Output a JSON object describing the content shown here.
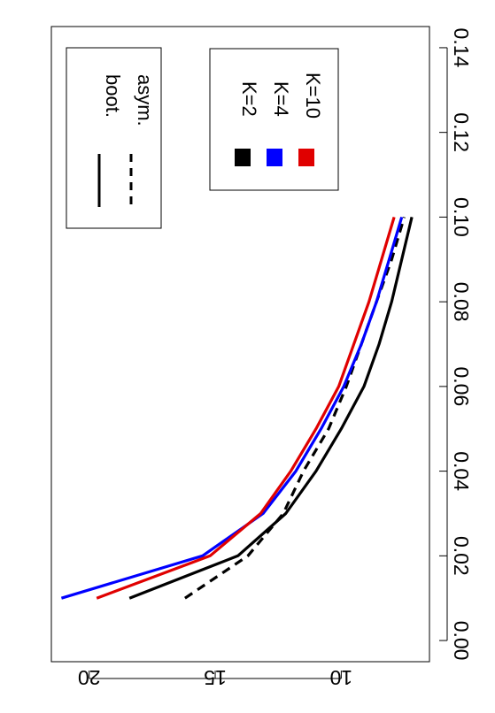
{
  "chart_data": {
    "type": "line",
    "orientation": "rotated-90",
    "xlim": [
      -0.005,
      0.145
    ],
    "ylim": [
      6.5,
      21.5
    ],
    "x_ticks": [
      "0.00",
      "0.02",
      "0.04",
      "0.06",
      "0.08",
      "0.10",
      "0.12",
      "0.14"
    ],
    "y_ticks": [
      "10",
      "15",
      "20"
    ],
    "series": [
      {
        "name": "K=2 boot.",
        "color": "#000000",
        "dash": "solid",
        "x": [
          0.01,
          0.02,
          0.03,
          0.04,
          0.05,
          0.06,
          0.07,
          0.08,
          0.09,
          0.1
        ],
        "y": [
          18.4,
          14.1,
          12.2,
          11.0,
          10.0,
          9.1,
          8.5,
          8.0,
          7.6,
          7.2
        ]
      },
      {
        "name": "K=2 asym.",
        "color": "#000000",
        "dash": "dashed",
        "x": [
          0.01,
          0.02,
          0.03,
          0.04,
          0.05,
          0.06,
          0.07,
          0.08,
          0.09,
          0.1
        ],
        "y": [
          16.2,
          13.7,
          12.3,
          11.5,
          10.5,
          9.8,
          9.2,
          8.6,
          8.0,
          7.5
        ]
      },
      {
        "name": "K=4 boot.",
        "color": "#0000ff",
        "dash": "solid",
        "x": [
          0.01,
          0.02,
          0.03,
          0.04,
          0.05,
          0.06,
          0.07,
          0.08,
          0.09,
          0.1
        ],
        "y": [
          21.1,
          15.5,
          13.1,
          11.8,
          10.8,
          9.9,
          9.2,
          8.6,
          8.1,
          7.6
        ]
      },
      {
        "name": "K=10 boot.",
        "color": "#e00000",
        "dash": "solid",
        "x": [
          0.01,
          0.02,
          0.03,
          0.04,
          0.05,
          0.06,
          0.07,
          0.08,
          0.09,
          0.1
        ],
        "y": [
          19.7,
          15.2,
          13.2,
          12.0,
          11.0,
          10.1,
          9.5,
          8.9,
          8.4,
          7.9
        ]
      }
    ],
    "legend_line": {
      "position": "top-right",
      "items": [
        {
          "label": "boot.",
          "dash": "solid"
        },
        {
          "label": "asym.",
          "dash": "dashed"
        }
      ]
    },
    "legend_color": {
      "position": "top-center",
      "items": [
        {
          "label": "K=2",
          "color": "#000000"
        },
        {
          "label": "K=4",
          "color": "#0000ff"
        },
        {
          "label": "K=10",
          "color": "#e00000"
        }
      ]
    }
  }
}
